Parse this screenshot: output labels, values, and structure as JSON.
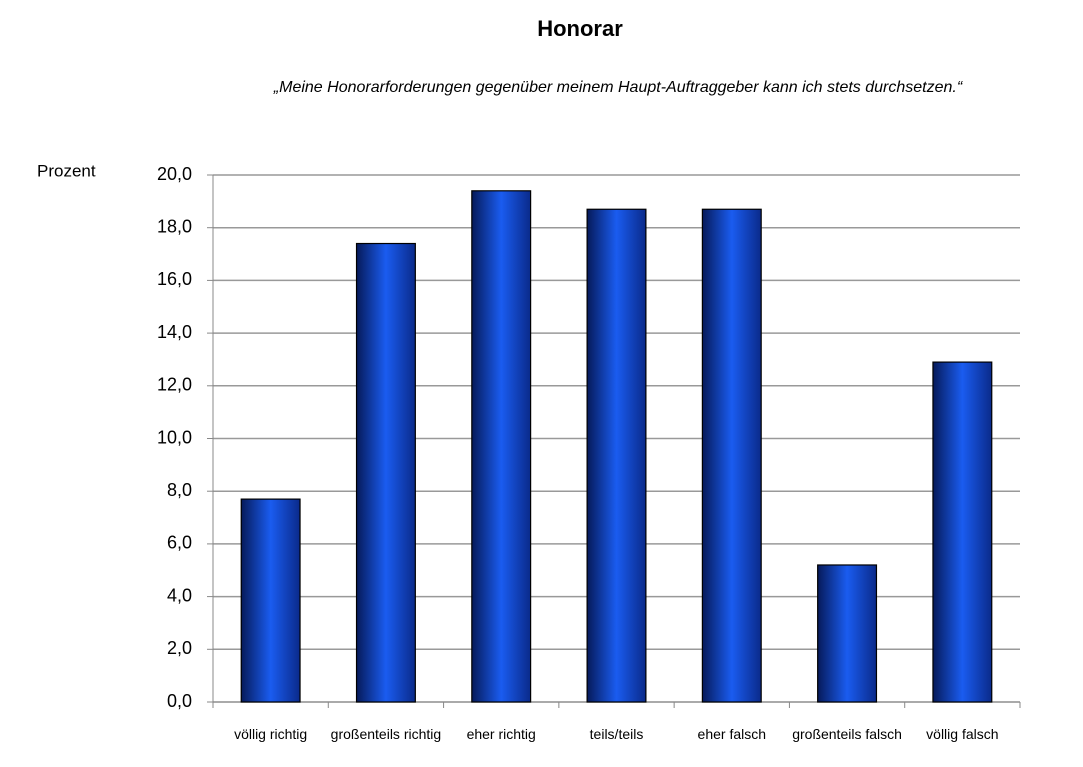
{
  "chart_data": {
    "type": "bar",
    "title": "Honorar",
    "subtitle": "„Meine Honorarforderungen gegenüber meinem Haupt-Auftraggeber kann ich stets durchsetzen.“",
    "y_label": "Prozent",
    "categories": [
      "völlig richtig",
      "großenteils richtig",
      "eher richtig",
      "teils/teils",
      "eher falsch",
      "großenteils falsch",
      "völlig falsch"
    ],
    "values": [
      7.7,
      17.4,
      19.4,
      18.7,
      18.7,
      5.2,
      12.9
    ],
    "color": "#1a5cf0",
    "ylim": [
      0,
      20
    ],
    "yticks": [
      {
        "value": 0,
        "label": "0,0"
      },
      {
        "value": 2,
        "label": "2,0"
      },
      {
        "value": 4,
        "label": "4,0"
      },
      {
        "value": 6,
        "label": "6,0"
      },
      {
        "value": 8,
        "label": "8,0"
      },
      {
        "value": 10,
        "label": "10,0"
      },
      {
        "value": 12,
        "label": "12,0"
      },
      {
        "value": 14,
        "label": "14,0"
      },
      {
        "value": 16,
        "label": "16,0"
      },
      {
        "value": 18,
        "label": "18,0"
      },
      {
        "value": 20,
        "label": "20,0"
      }
    ],
    "grid": true
  }
}
